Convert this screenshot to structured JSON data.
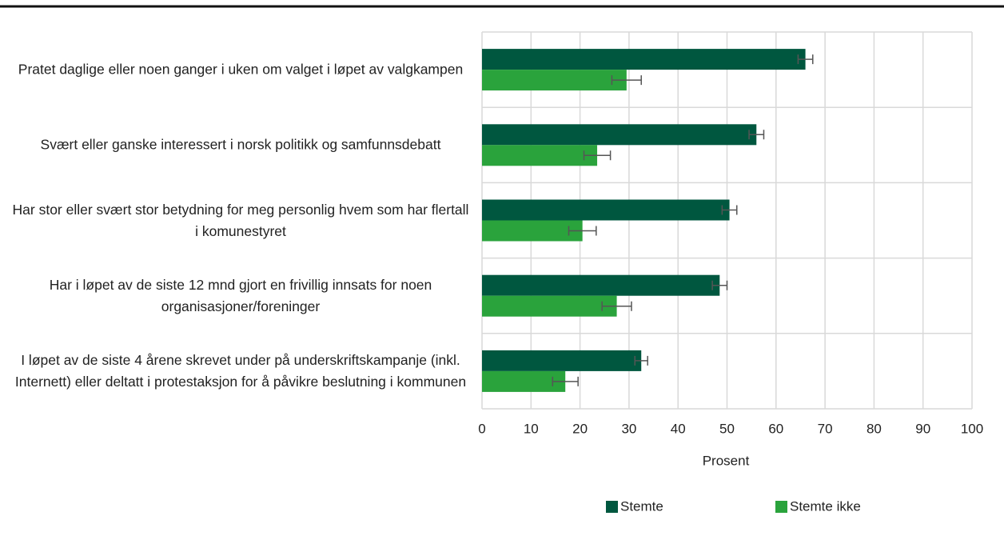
{
  "chart_data": {
    "type": "hbar",
    "categories": [
      "Pratet daglige eller noen ganger i uken om valget i løpet av valgkampen",
      "Svært eller ganske interessert i norsk politikk og samfunnsdebatt",
      "Har stor eller svært stor betydning for meg personlig hvem som har flertall i komunestyret",
      "Har i løpet av de siste 12 mnd gjort en frivillig innsats for noen organisasjoner/foreninger",
      "I løpet av de siste 4 årene skrevet under på underskriftskampanje (inkl. Internett) eller deltatt i protestaksjon for å påvikre beslutning i kommunen"
    ],
    "series": [
      {
        "name": "Stemte",
        "color": "#00573f",
        "values": [
          66,
          56,
          50.5,
          48.5,
          32.5
        ],
        "errors": [
          1.5,
          1.5,
          1.5,
          1.5,
          1.3
        ]
      },
      {
        "name": "Stemte ikke",
        "color": "#2aa33c",
        "values": [
          29.5,
          23.5,
          20.5,
          27.5,
          17
        ],
        "errors": [
          3,
          2.7,
          2.8,
          3,
          2.6
        ]
      }
    ],
    "xlabel": "Prosent",
    "xlim": [
      0,
      100
    ],
    "xticks": [
      0,
      10,
      20,
      30,
      40,
      50,
      60,
      70,
      80,
      90,
      100
    ],
    "grid": true,
    "legend": "bottom"
  }
}
